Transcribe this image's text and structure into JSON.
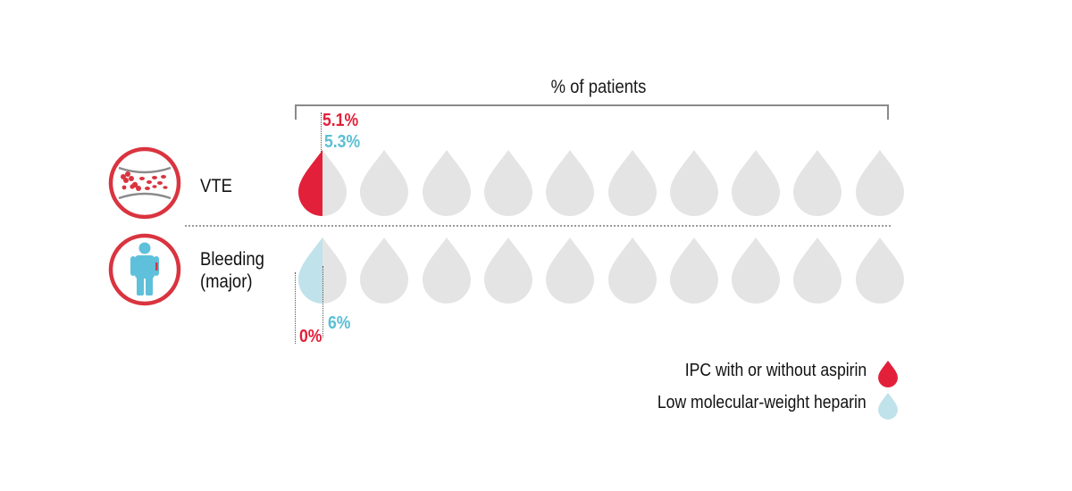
{
  "colors": {
    "ipc": "#e2203a",
    "lmwh": "#c0e2ea",
    "lmwh_text": "#5bbfd4",
    "empty_drop": "#e4e4e4",
    "icon_ring": "#d9343f",
    "person": "#5ec0da"
  },
  "header": {
    "axis_title": "% of patients"
  },
  "rows": [
    {
      "label": "VTE",
      "icon": "blood-vessel-clot-icon",
      "values": {
        "ipc": "5.1%",
        "lmwh": "5.3%"
      }
    },
    {
      "label_line1": "Bleeding",
      "label_line2": "(major)",
      "icon": "person-bleeding-icon",
      "values": {
        "ipc": "0%",
        "lmwh": "6%"
      }
    }
  ],
  "legend": [
    {
      "label": "IPC with or without aspirin",
      "icon": "red-drop-icon"
    },
    {
      "label": "Low molecular-weight heparin",
      "icon": "light-blue-drop-icon"
    }
  ],
  "chart_data": {
    "type": "pictograph",
    "title": "% of patients",
    "units": "percent of patients (each drop = 10%)",
    "drops_per_row": 10,
    "categories": [
      "VTE",
      "Bleeding (major)"
    ],
    "series": [
      {
        "name": "IPC with or without aspirin",
        "color": "#e2203a",
        "values": [
          5.1,
          0
        ]
      },
      {
        "name": "Low molecular-weight heparin",
        "color": "#c0e2ea",
        "values": [
          5.3,
          6
        ]
      }
    ],
    "data_labels": {
      "VTE": {
        "IPC with or without aspirin": "5.1%",
        "Low molecular-weight heparin": "5.3%"
      },
      "Bleeding (major)": {
        "IPC with or without aspirin": "0%",
        "Low molecular-weight heparin": "6%"
      }
    },
    "xlim": [
      0,
      100
    ],
    "legend_position": "bottom-right"
  }
}
